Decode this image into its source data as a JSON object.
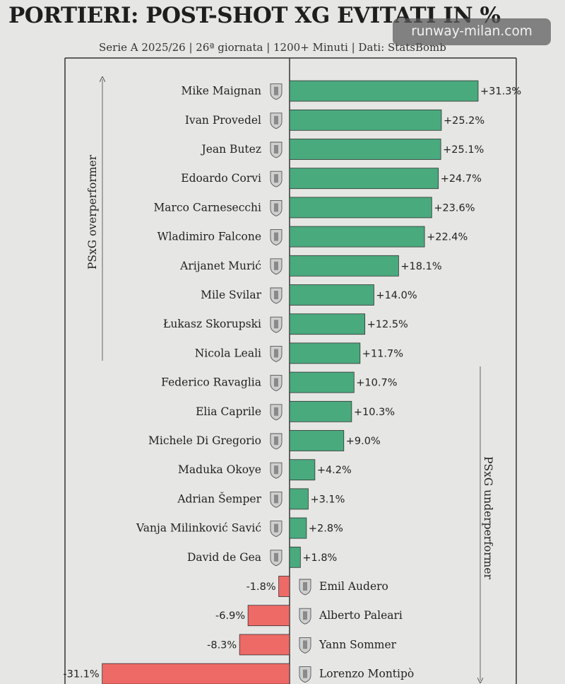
{
  "title": "PORTIERI: POST-SHOT XG EVITATI IN %",
  "subtitle": "Serie A 2025/26 | 26ª giornata | 1200+ Minuti | Dati: StatsBomb",
  "watermark": "runway-milan.com",
  "colors": {
    "positive": "#49aa7d",
    "negative": "#ee6a66",
    "frame": "#333333",
    "background": "#e6e6e4"
  },
  "chart_data": {
    "type": "bar",
    "orientation": "horizontal",
    "categories": [
      "Mike Maignan",
      "Ivan Provedel",
      "Jean Butez",
      "Edoardo Corvi",
      "Marco Carnesecchi",
      "Wladimiro Falcone",
      "Arijanet Murić",
      "Mile Svilar",
      "Łukasz Skorupski",
      "Nicola Leali",
      "Federico Ravaglia",
      "Elia Caprile",
      "Michele Di Gregorio",
      "Maduka Okoye",
      "Adrian Šemper",
      "Vanja Milinković Savić",
      "David de Gea",
      "Emil Audero",
      "Alberto Paleari",
      "Yann Sommer",
      "Lorenzo Montipò"
    ],
    "values": [
      31.3,
      25.2,
      25.1,
      24.7,
      23.6,
      22.4,
      18.1,
      14.0,
      12.5,
      11.7,
      10.7,
      10.3,
      9.0,
      4.2,
      3.1,
      2.8,
      1.8,
      -1.8,
      -6.9,
      -8.3,
      -31.1
    ],
    "value_labels": [
      "+31.3%",
      "+25.2%",
      "+25.1%",
      "+24.7%",
      "+23.6%",
      "+22.4%",
      "+18.1%",
      "+14.0%",
      "+12.5%",
      "+11.7%",
      "+10.7%",
      "+10.3%",
      "+9.0%",
      "+4.2%",
      "+3.1%",
      "+2.8%",
      "+1.8%",
      "-1.8%",
      "-6.9%",
      "-8.3%",
      "-31.1%"
    ],
    "club_icons": [
      "milan-crest-icon",
      "lazio-crest-icon",
      "como-crest-icon",
      "parma-crest-icon",
      "atalanta-crest-icon",
      "lecce-crest-icon",
      "sassuolo-crest-icon",
      "roma-crest-icon",
      "bologna-crest-icon",
      "genoa-crest-icon",
      "bologna-crest-icon",
      "cagliari-crest-icon",
      "juventus-crest-icon",
      "udinese-crest-icon",
      "pisa-crest-icon",
      "napoli-crest-icon",
      "fiorentina-crest-icon",
      "cremonese-crest-icon",
      "torino-crest-icon",
      "inter-crest-icon",
      "verona-crest-icon"
    ],
    "annotations": [
      "PSxG overperformer",
      "PSxG underperformer"
    ],
    "xlim": [
      -31.1,
      31.3
    ],
    "grid": false
  }
}
